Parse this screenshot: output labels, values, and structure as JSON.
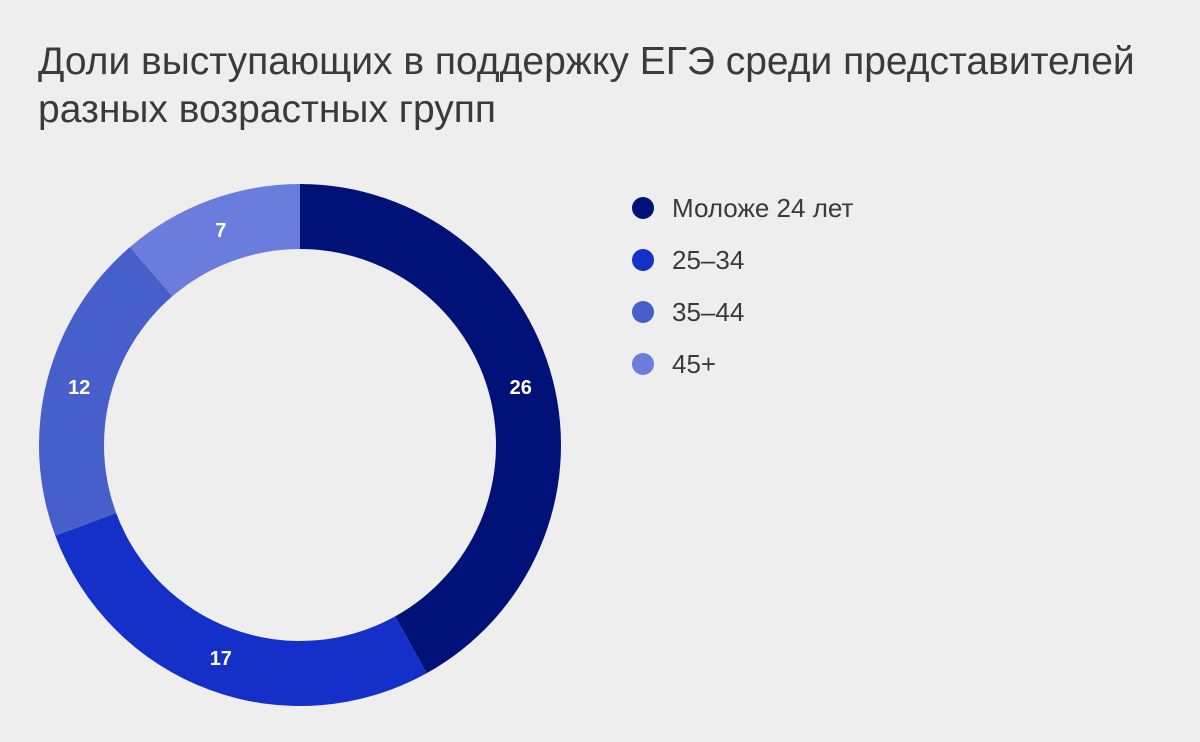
{
  "chart_data": {
    "type": "pie",
    "variant": "donut",
    "title": "Доли выступающих в поддержку ЕГЭ среди представителей разных возрастных групп",
    "categories": [
      "Моложе 24 лет",
      "25–34",
      "35–44",
      "45+"
    ],
    "values": [
      26,
      17,
      12,
      7
    ],
    "colors": [
      "#001278",
      "#1530c8",
      "#475fcb",
      "#6a7ddd"
    ],
    "label_color": "#ffffff",
    "legend_position": "right"
  }
}
